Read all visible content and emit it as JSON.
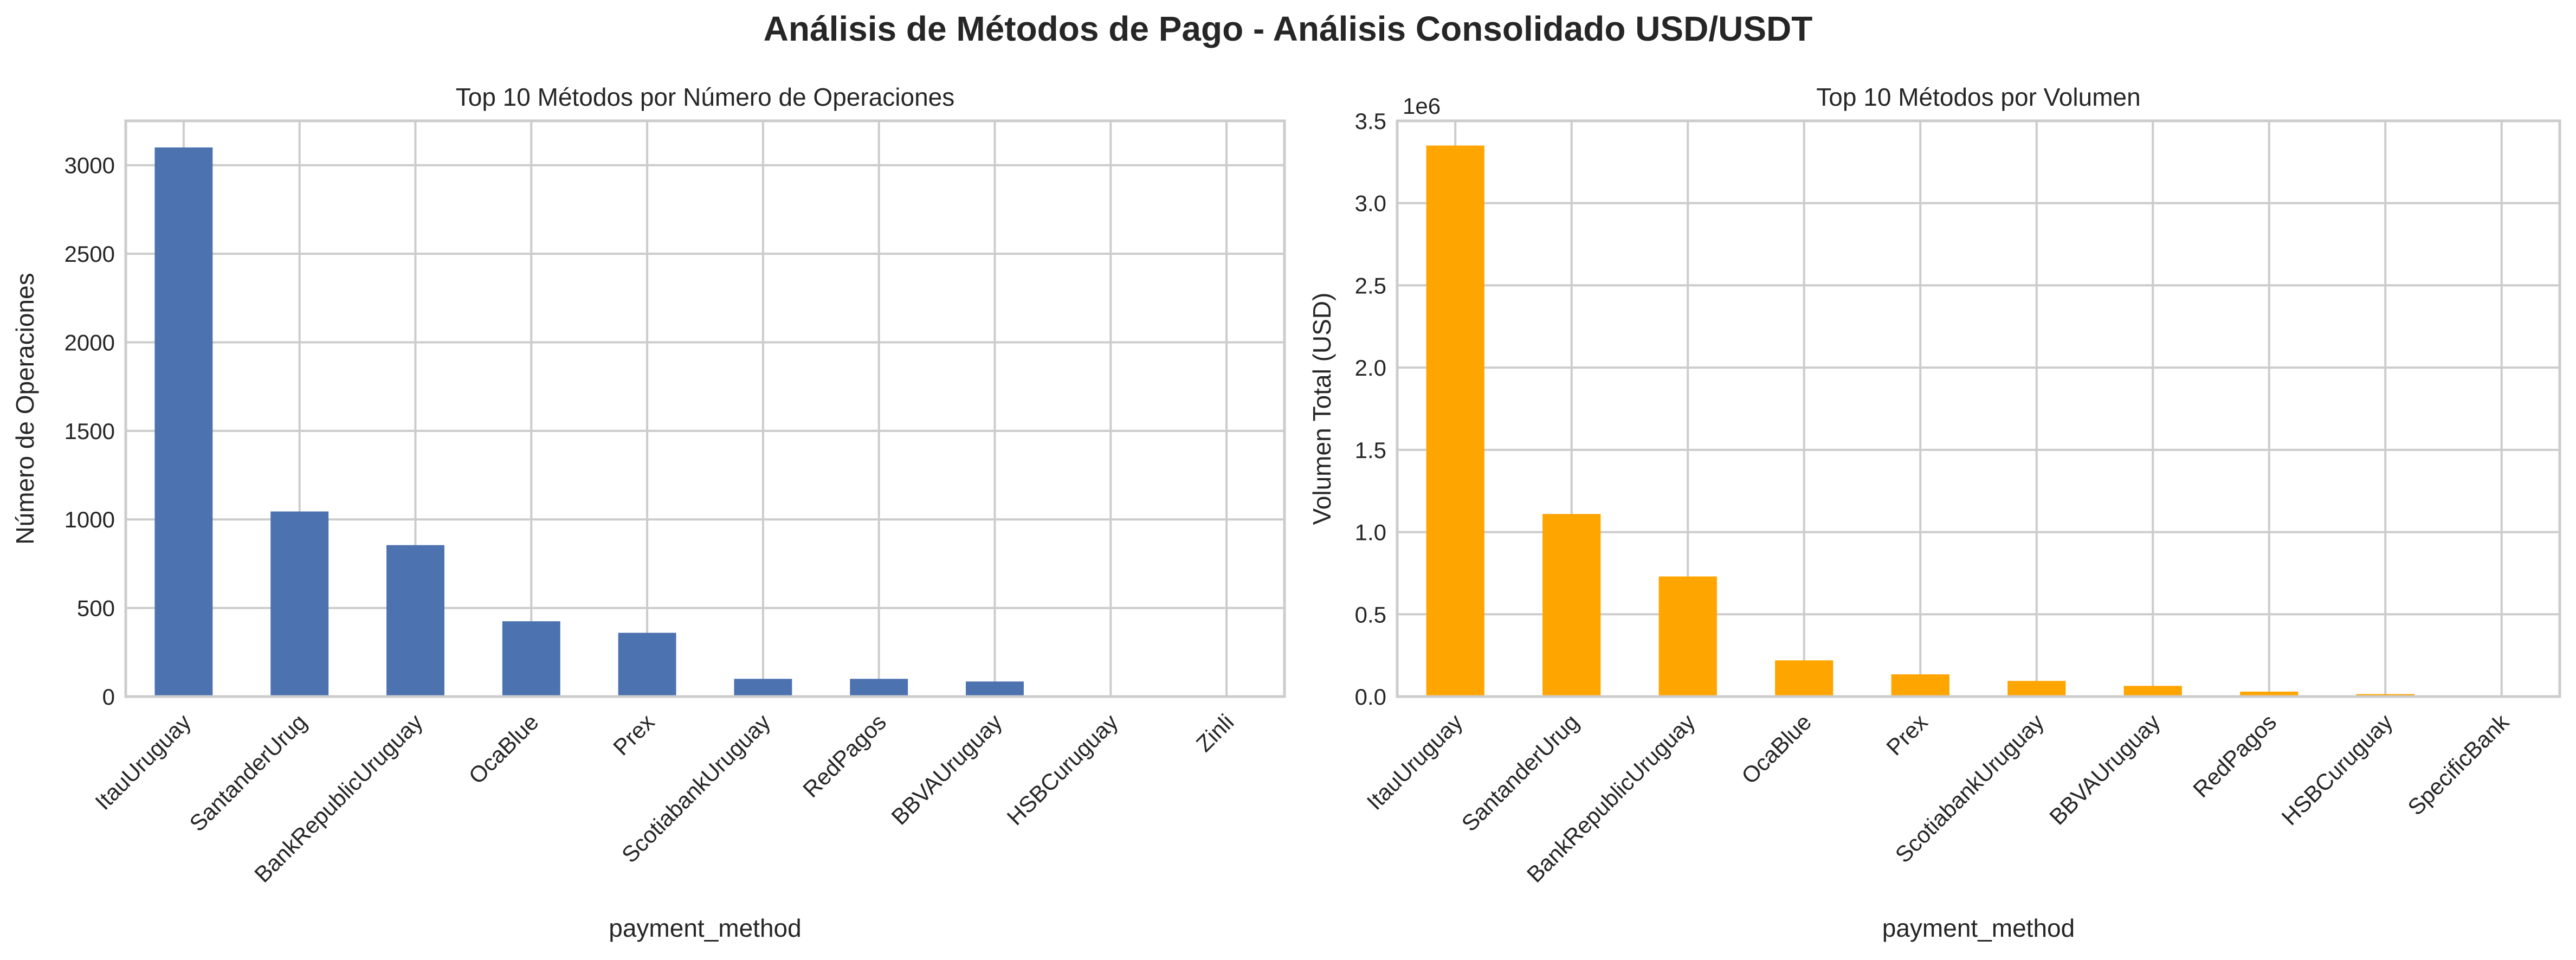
{
  "figure": {
    "title": "Análisis de Métodos de Pago - Análisis Consolidado USD/USDT"
  },
  "chart_data": [
    {
      "type": "bar",
      "title": "Top 10 Métodos por Número de Operaciones",
      "xlabel": "payment_method",
      "ylabel": "Número de Operaciones",
      "categories": [
        "ItauUruguay",
        "SantanderUrug",
        "BankRepublicUruguay",
        "OcaBlue",
        "Prex",
        "ScotiabankUruguay",
        "RedPagos",
        "BBVAUruguay",
        "HSBCuruguay",
        "Zinli"
      ],
      "values": [
        3100,
        1045,
        855,
        425,
        360,
        100,
        100,
        85,
        5,
        3
      ],
      "ylim": [
        0,
        3250
      ],
      "yticks": [
        0,
        500,
        1000,
        1500,
        2000,
        2500,
        3000
      ],
      "ytick_labels": [
        "0",
        "500",
        "1000",
        "1500",
        "2000",
        "2500",
        "3000"
      ],
      "offset_label": "",
      "color": "#4c72b0",
      "grid": true
    },
    {
      "type": "bar",
      "title": "Top 10 Métodos por Volumen",
      "xlabel": "payment_method",
      "ylabel": "Volumen Total (USD)",
      "categories": [
        "ItauUruguay",
        "SantanderUrug",
        "BankRepublicUruguay",
        "OcaBlue",
        "Prex",
        "ScotiabankUruguay",
        "BBVAUruguay",
        "RedPagos",
        "HSBCuruguay",
        "SpecificBank"
      ],
      "values": [
        3350000,
        1110000,
        730000,
        220000,
        135000,
        95000,
        65000,
        30000,
        15000,
        3000
      ],
      "ylim": [
        0,
        3500000
      ],
      "yticks": [
        0,
        500000,
        1000000,
        1500000,
        2000000,
        2500000,
        3000000,
        3500000
      ],
      "ytick_labels": [
        "0.0",
        "0.5",
        "1.0",
        "1.5",
        "2.0",
        "2.5",
        "3.0",
        "3.5"
      ],
      "offset_label": "1e6",
      "color": "#ffa500",
      "grid": true
    }
  ]
}
